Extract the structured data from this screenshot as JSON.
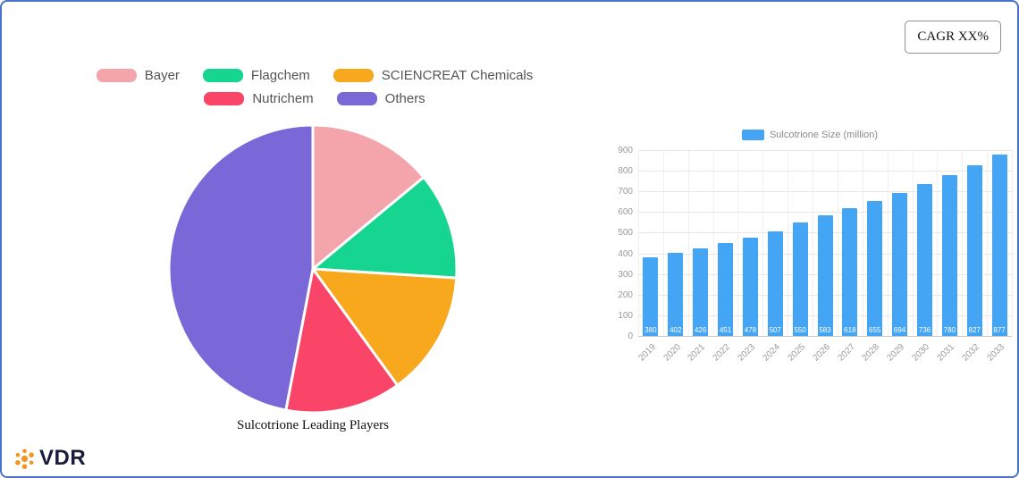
{
  "card": {
    "cagr_label": "CAGR XX%",
    "brand": "VDR"
  },
  "colors": {
    "card_border": "#4a72c8",
    "brand_orange": "#f5941f",
    "brand_navy": "#181d3a",
    "axis_text": "#999999",
    "legend_text": "#555555"
  },
  "chart_data": [
    {
      "type": "pie",
      "title": "Sulcotrione Leading Players",
      "legend_position": "top",
      "legend_rows": [
        3,
        2
      ],
      "slices": [
        {
          "label": "Bayer",
          "value": 14,
          "color": "#f4a5ab"
        },
        {
          "label": "Flagchem",
          "value": 12,
          "color": "#15d590"
        },
        {
          "label": "SCIENCREAT Chemicals",
          "value": 14,
          "color": "#f7a81d"
        },
        {
          "label": "Nutrichem",
          "value": 13,
          "color": "#fa4568"
        },
        {
          "label": "Others",
          "value": 47,
          "color": "#7a68d8"
        }
      ]
    },
    {
      "type": "bar",
      "legend": "Sulcotrione Size (million)",
      "categories": [
        "2019",
        "2020",
        "2021",
        "2022",
        "2023",
        "2024",
        "2025",
        "2026",
        "2027",
        "2028",
        "2029",
        "2030",
        "2031",
        "2032",
        "2033"
      ],
      "values": [
        380,
        402,
        426,
        451,
        478,
        507,
        550,
        583,
        618,
        655,
        694,
        736,
        780,
        827,
        877
      ],
      "ylim": [
        0,
        900
      ],
      "ytick_step": 100,
      "grid": true,
      "bar_color": "#45a5f5",
      "value_label_color": "#ffffff"
    }
  ]
}
